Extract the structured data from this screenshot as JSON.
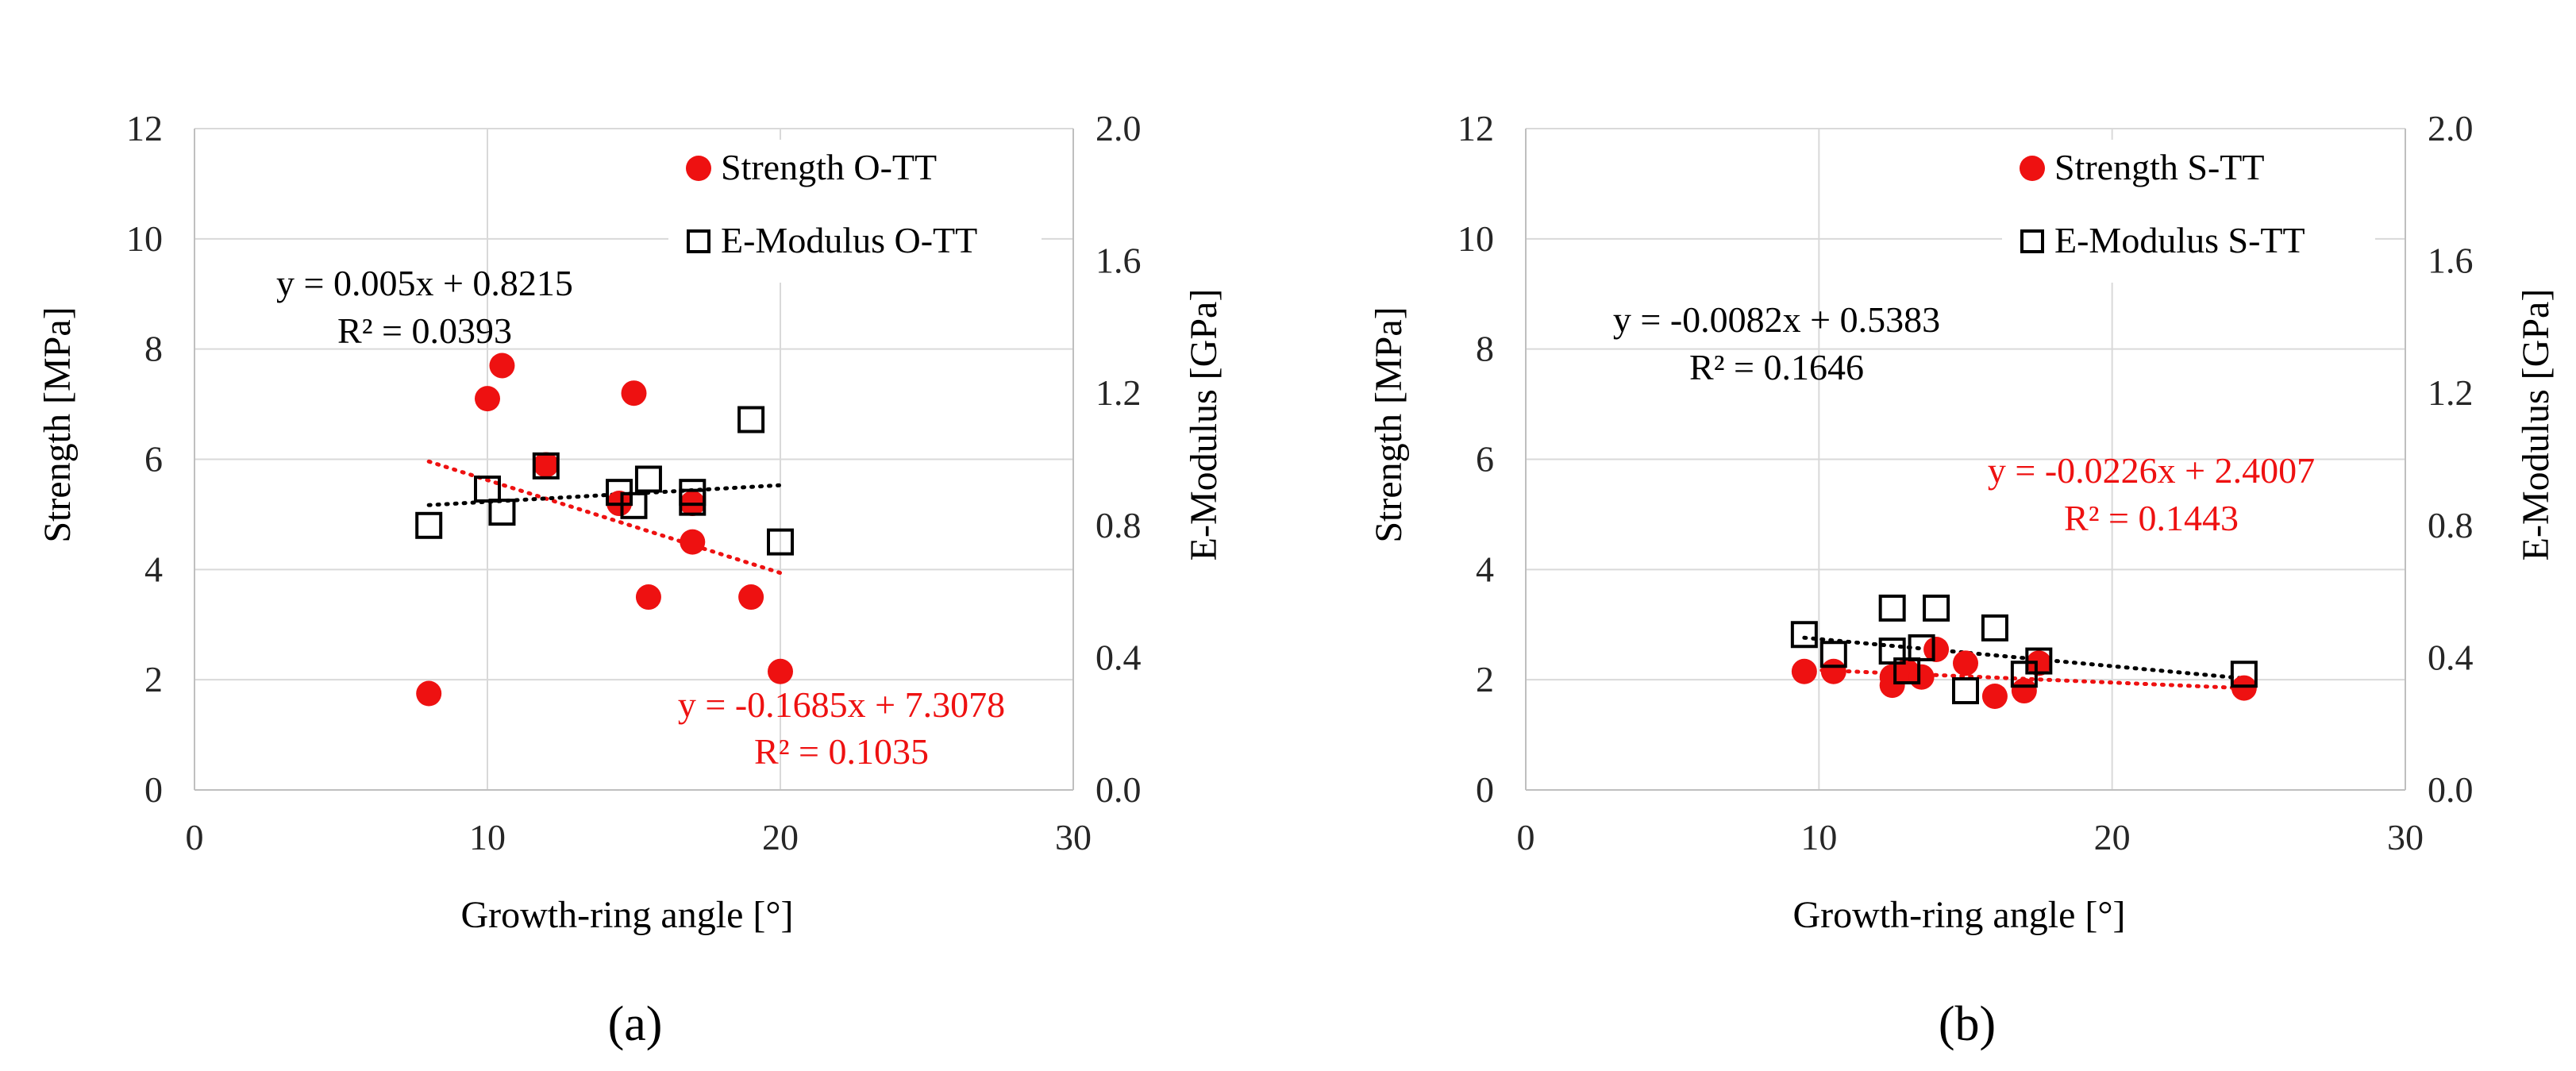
{
  "colors": {
    "strength": "#ee1111",
    "modulus": "#000000",
    "grid": "#d9d9d9",
    "axis": "#bfbfbf"
  },
  "chart_data": [
    {
      "type": "scatter",
      "panel_label": "(a)",
      "xlabel": "Growth-ring angle [°]",
      "ylabel": "Strength [MPa]",
      "y2label": "E-Modulus [GPa]",
      "xlim": [
        0,
        30
      ],
      "ylim": [
        0,
        12
      ],
      "y2lim": [
        0.0,
        2.0
      ],
      "xticks": [
        "0",
        "10",
        "20",
        "30"
      ],
      "yticks": [
        "0",
        "2",
        "4",
        "6",
        "8",
        "10",
        "12"
      ],
      "y2ticks": [
        "0.0",
        "0.4",
        "0.8",
        "1.2",
        "1.6",
        "2.0"
      ],
      "grid": true,
      "legend_position": "top-right",
      "series": [
        {
          "name": "Strength O-TT",
          "axis": "left",
          "marker": "filled-circle",
          "color": "#ee1111",
          "x": [
            8,
            10,
            10.5,
            12,
            14.5,
            15,
            15.5,
            17,
            17,
            19,
            20
          ],
          "y": [
            1.75,
            7.1,
            7.7,
            5.9,
            5.2,
            7.2,
            3.5,
            5.2,
            4.5,
            3.5,
            2.15
          ],
          "trendline": {
            "x": [
              8,
              20
            ],
            "equation": "y = -0.1685x + 7.3078",
            "r2": "R² = 0.1035",
            "slope": -0.1685,
            "intercept": 7.3078
          }
        },
        {
          "name": "E-Modulus O-TT",
          "axis": "right",
          "marker": "open-square",
          "color": "#000000",
          "x": [
            8,
            10,
            10.5,
            12,
            14.5,
            15,
            15.5,
            17,
            17,
            19,
            20
          ],
          "y": [
            0.8,
            0.91,
            0.84,
            0.98,
            0.9,
            0.86,
            0.94,
            0.9,
            0.87,
            1.12,
            0.75
          ],
          "trendline": {
            "x": [
              8,
              20
            ],
            "equation": "y = 0.005x + 0.8215",
            "r2": "R² = 0.0393",
            "slope": 0.005,
            "intercept": 0.8215
          }
        }
      ]
    },
    {
      "type": "scatter",
      "panel_label": "(b)",
      "xlabel": "Growth-ring angle [°]",
      "ylabel": "Strength [MPa]",
      "y2label": "E-Modulus [GPa]",
      "xlim": [
        0,
        30
      ],
      "ylim": [
        0,
        12
      ],
      "y2lim": [
        0.0,
        2.0
      ],
      "xticks": [
        "0",
        "10",
        "20",
        "30"
      ],
      "yticks": [
        "0",
        "2",
        "4",
        "6",
        "8",
        "10",
        "12"
      ],
      "y2ticks": [
        "0.0",
        "0.4",
        "0.8",
        "1.2",
        "1.6",
        "2.0"
      ],
      "grid": true,
      "legend_position": "top-right",
      "series": [
        {
          "name": "Strength S-TT",
          "axis": "left",
          "marker": "filled-circle",
          "color": "#ee1111",
          "x": [
            9.5,
            10.5,
            12.5,
            12.5,
            13,
            13.5,
            14,
            15,
            16,
            17,
            17.5,
            24.5
          ],
          "y": [
            2.15,
            2.15,
            2.05,
            1.9,
            2.15,
            2.05,
            2.55,
            2.3,
            1.7,
            1.8,
            2.3,
            1.85
          ],
          "trendline": {
            "x": [
              9.5,
              24.5
            ],
            "equation": "y = -0.0226x + 2.4007",
            "r2": "R² = 0.1443",
            "slope": -0.0226,
            "intercept": 2.4007
          }
        },
        {
          "name": "E-Modulus S-TT",
          "axis": "right",
          "marker": "open-square",
          "color": "#000000",
          "x": [
            9.5,
            10.5,
            12.5,
            12.5,
            13,
            13.5,
            14,
            15,
            16,
            17,
            17.5,
            24.5
          ],
          "y": [
            0.47,
            0.41,
            0.55,
            0.42,
            0.36,
            0.43,
            0.55,
            0.3,
            0.49,
            0.35,
            0.39,
            0.35
          ],
          "trendline": {
            "x": [
              9.5,
              24.5
            ],
            "equation": "y = -0.0082x + 0.5383",
            "r2": "R² = 0.1646",
            "slope": -0.0082,
            "intercept": 0.5383
          }
        }
      ]
    }
  ]
}
